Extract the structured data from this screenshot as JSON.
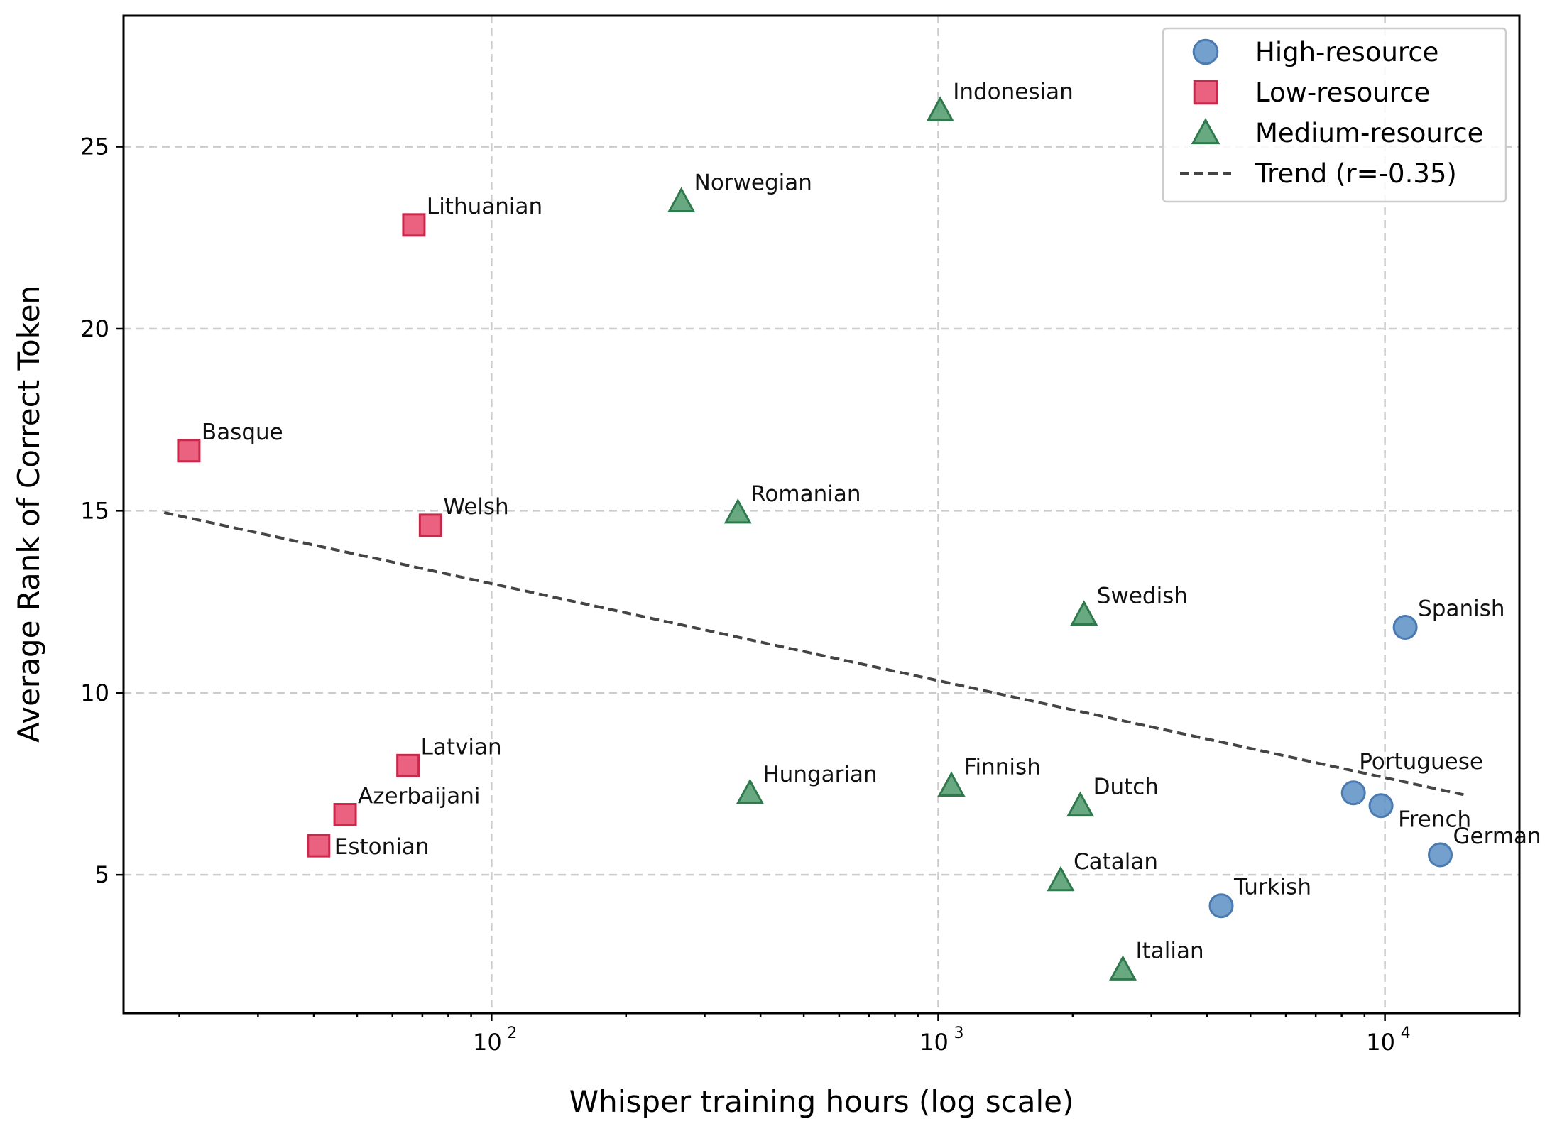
{
  "chart_data": {
    "type": "scatter",
    "title": "",
    "xlabel": "Whisper training hours (log scale)",
    "ylabel": "Average Rank of Correct Token",
    "xscale": "log",
    "xlim": [
      15,
      20000
    ],
    "ylim": [
      1.2,
      28.6
    ],
    "grid": true,
    "legend_position": "upper right",
    "x_ticks": [
      {
        "value": 100,
        "base": "10",
        "exp": "2"
      },
      {
        "value": 1000,
        "base": "10",
        "exp": "3"
      },
      {
        "value": 10000,
        "base": "10",
        "exp": "4"
      }
    ],
    "y_ticks": [
      {
        "value": 5,
        "label": "5"
      },
      {
        "value": 10,
        "label": "10"
      },
      {
        "value": 15,
        "label": "15"
      },
      {
        "value": 20,
        "label": "20"
      },
      {
        "value": 25,
        "label": "25"
      }
    ],
    "series": [
      {
        "name": "High-resource",
        "marker": "circle",
        "color": "#5b8fc4",
        "edge": "#4a7ab0",
        "points": [
          {
            "label": "Spanish",
            "x": 11100,
            "y": 11.8
          },
          {
            "label": "Portuguese",
            "x": 8500,
            "y": 7.25
          },
          {
            "label": "French",
            "x": 9800,
            "y": 6.9
          },
          {
            "label": "German",
            "x": 13300,
            "y": 5.55
          },
          {
            "label": "Turkish",
            "x": 4300,
            "y": 4.15
          }
        ]
      },
      {
        "name": "Low-resource",
        "marker": "square",
        "color": "#e8456a",
        "edge": "#c8284a",
        "points": [
          {
            "label": "Lithuanian",
            "x": 67,
            "y": 22.85
          },
          {
            "label": "Basque",
            "x": 21,
            "y": 16.65
          },
          {
            "label": "Welsh",
            "x": 73,
            "y": 14.6
          },
          {
            "label": "Latvian",
            "x": 65,
            "y": 8.0
          },
          {
            "label": "Azerbaijani",
            "x": 47,
            "y": 6.65
          },
          {
            "label": "Estonian",
            "x": 41,
            "y": 5.8
          }
        ]
      },
      {
        "name": "Medium-resource",
        "marker": "triangle",
        "color": "#4f9a6c",
        "edge": "#2f7a4c",
        "points": [
          {
            "label": "Indonesian",
            "x": 1010,
            "y": 26.0
          },
          {
            "label": "Norwegian",
            "x": 266,
            "y": 23.5
          },
          {
            "label": "Romanian",
            "x": 356,
            "y": 14.95
          },
          {
            "label": "Swedish",
            "x": 2120,
            "y": 12.15
          },
          {
            "label": "Hungarian",
            "x": 379,
            "y": 7.25
          },
          {
            "label": "Finnish",
            "x": 1070,
            "y": 7.45
          },
          {
            "label": "Dutch",
            "x": 2080,
            "y": 6.9
          },
          {
            "label": "Catalan",
            "x": 1880,
            "y": 4.85
          },
          {
            "label": "Italian",
            "x": 2590,
            "y": 2.4
          }
        ]
      }
    ],
    "trend": {
      "name": "Trend (r=-0.35)",
      "color": "#444444",
      "x_start": 18.5,
      "y_start": 14.95,
      "x_end": 15000,
      "y_end": 7.2
    }
  }
}
